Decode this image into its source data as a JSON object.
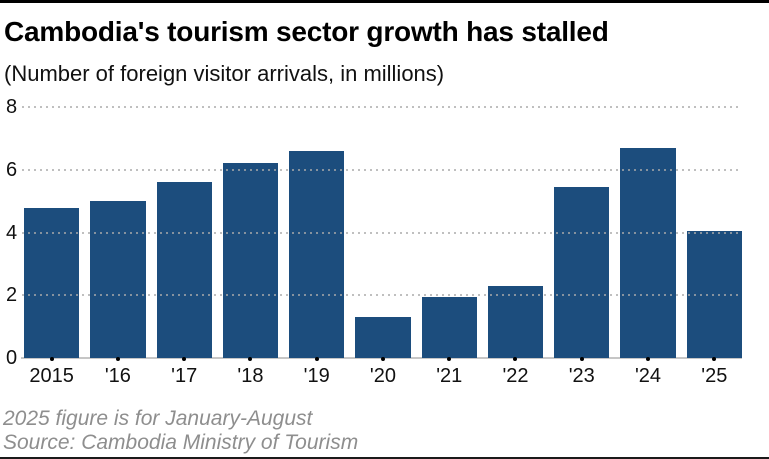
{
  "header": {
    "title": "Cambodia's tourism sector growth has stalled",
    "subtitle": "(Number of foreign visitor arrivals, in millions)"
  },
  "footer": {
    "note": "2025 figure is for January-August",
    "source": "Source: Cambodia Ministry of Tourism"
  },
  "colors": {
    "bar": "#1c4d7d",
    "gridline": "#aaaaaa",
    "baseline": "#c6c6c6",
    "tick_dot": "#000000",
    "axis_text": "#111111",
    "footer_text": "#8e8e8e"
  },
  "chart_data": {
    "type": "bar",
    "title": "Cambodia's tourism sector growth has stalled",
    "subtitle": "(Number of foreign visitor arrivals, in millions)",
    "categories": [
      "2015",
      "'16",
      "'17",
      "'18",
      "'19",
      "'20",
      "'21",
      "'22",
      "'23",
      "'24",
      "'25"
    ],
    "values": [
      4.78,
      5.01,
      5.6,
      6.2,
      6.61,
      1.31,
      1.95,
      2.28,
      5.45,
      6.7,
      4.05
    ],
    "unit": "millions of foreign visitor arrivals",
    "xlabel": "",
    "ylabel": "",
    "ylim": [
      0,
      8
    ],
    "yticks": [
      0,
      2,
      4,
      6,
      8
    ],
    "grid": "horizontal-dotted",
    "legend": "none",
    "annotations": [
      "2025 figure is for January-August"
    ],
    "source": "Source: Cambodia Ministry of Tourism"
  }
}
